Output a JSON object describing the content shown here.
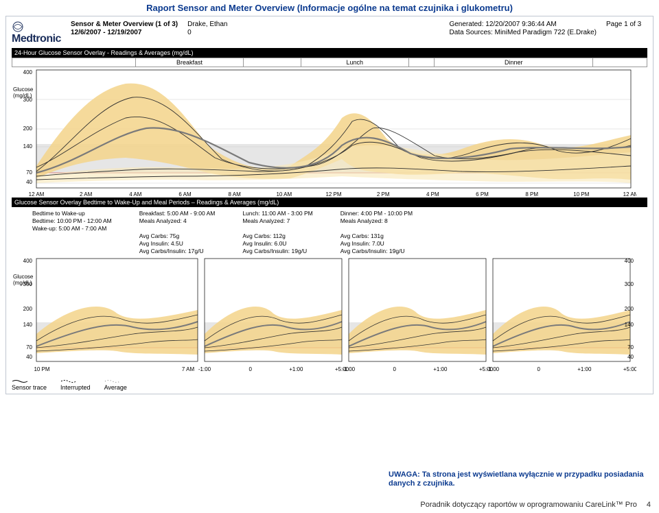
{
  "title_text": "Raport Sensor and Meter Overview (Informacje ogólne na temat czujnika i glukometru)",
  "brand": "Medtronic",
  "header": {
    "report_name": "Sensor & Meter Overview (1 of 3)",
    "date_range": "12/6/2007 - 12/19/2007",
    "patient": "Drake, Ethan",
    "zero": "0",
    "generated": "Generated: 12/20/2007 9:36:44 AM",
    "source": "Data Sources: MiniMed Paradigm 722 (E.Drake)",
    "page": "Page 1 of 3"
  },
  "chart1": {
    "title": "24-Hour Glucose Sensor Overlay - Readings & Averages (mg/dL)",
    "meals": [
      "Breakfast",
      "Lunch",
      "Dinner"
    ],
    "ylabel": "Glucose\n(mg/dL)",
    "ticks_y": [
      "400",
      "300",
      "200",
      "140",
      "70",
      "40"
    ],
    "ticks_x": [
      "12 AM",
      "2 AM",
      "4 AM",
      "6 AM",
      "8 AM",
      "10 AM",
      "12 PM",
      "2 PM",
      "4 PM",
      "6 PM",
      "8 PM",
      "10 PM",
      "12 AM"
    ],
    "colors": {
      "band": "#f3d48a",
      "band2": "#f9e7b8",
      "avg": "#7d7d7d",
      "target": "#d0d0d0",
      "low": "#e28a8a"
    }
  },
  "chart2": {
    "title": "Glucose Sensor Overlay Bedtime to Wake-Up and Meal Periods – Readings & Averages (mg/dL)",
    "cols": [
      {
        "h": "Bedtime to Wake-up",
        "l1": "Bedtime: 10:00 PM - 12:00 AM",
        "l2": "Wake-up: 5:00 AM - 7:00 AM",
        "l3": "",
        "l4": "",
        "l5": ""
      },
      {
        "h": "Breakfast: 5:00 AM - 9:00 AM",
        "l1": "Meals Analyzed: 4",
        "l2": "",
        "l3": "Avg Carbs: 75g",
        "l4": "Avg Insulin: 4.5U",
        "l5": "Avg Carbs/Insulin: 17g/U"
      },
      {
        "h": "Lunch: 11:00 AM - 3:00 PM",
        "l1": "Meals Analyzed: 7",
        "l2": "",
        "l3": "Avg Carbs: 112g",
        "l4": "Avg Insulin: 6.0U",
        "l5": "Avg Carbs/Insulin: 19g/U"
      },
      {
        "h": "Dinner: 4:00 PM - 10:00 PM",
        "l1": "Meals Analyzed: 8",
        "l2": "",
        "l3": "Avg Carbs: 131g",
        "l4": "Avg Insulin: 7.0U",
        "l5": "Avg Carbs/Insulin: 19g/U"
      }
    ],
    "ticks_y": [
      "400",
      "300",
      "200",
      "140",
      "70",
      "40"
    ],
    "panel_x": {
      "bed": [
        "10 PM",
        "7 AM"
      ],
      "meal": [
        "-1:00",
        "0",
        "+1:00",
        "+5:00"
      ]
    }
  },
  "legend": {
    "sensor": "Sensor trace",
    "interrupted": "Interrupted",
    "average": "Average"
  },
  "note": "UWAGA: Ta strona jest wyświetlana wyłącznie w przypadku posiadania danych z czujnika.",
  "footer": {
    "text": "Poradnik dotyczący raportów w oprogramowaniu CareLink™ Pro",
    "page": "4"
  }
}
